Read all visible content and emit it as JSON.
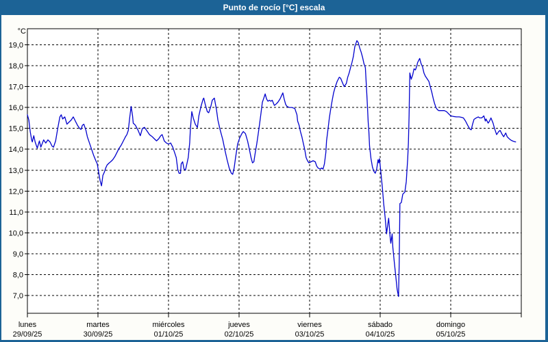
{
  "window": {
    "title": "Punto de rocío [°C] escala"
  },
  "colors": {
    "titlebar": "#1c6396",
    "frame": "#1c6396",
    "series_line": "#0000cd",
    "grid": "#000000",
    "text": "#000000",
    "plot_background": "#ffffff"
  },
  "chart_data": {
    "type": "line",
    "title": "Punto de rocío [°C] escala",
    "ylabel": "°C",
    "unit_label": "°C",
    "decimal_separator": ",",
    "grid": "dashed",
    "legend_position": "none",
    "ylim": [
      7,
      19
    ],
    "yticks": [
      7,
      8,
      9,
      10,
      11,
      12,
      13,
      14,
      15,
      16,
      17,
      18,
      19
    ],
    "ytick_labels": [
      "7,0",
      "8,0",
      "9,0",
      "10,0",
      "11,0",
      "12,0",
      "13,0",
      "14,0",
      "15,0",
      "16,0",
      "17,0",
      "18,0",
      "19,0"
    ],
    "x_axis": {
      "range_days": [
        0,
        7
      ],
      "days": [
        {
          "name": "lunes",
          "date": "29/09/25"
        },
        {
          "name": "martes",
          "date": "30/09/25"
        },
        {
          "name": "miércoles",
          "date": "01/10/25"
        },
        {
          "name": "jueves",
          "date": "02/10/25"
        },
        {
          "name": "viernes",
          "date": "03/10/25"
        },
        {
          "name": "sábado",
          "date": "04/10/25"
        },
        {
          "name": "domingo",
          "date": "05/10/25"
        }
      ]
    },
    "series": [
      {
        "name": "Punto de rocío",
        "color": "#0000cd",
        "points": [
          [
            0,
            15.65
          ],
          [
            0.02,
            15.4
          ],
          [
            0.04,
            14.85
          ],
          [
            0.06,
            14.45
          ],
          [
            0.07,
            14.35
          ],
          [
            0.09,
            14.65
          ],
          [
            0.11,
            14.35
          ],
          [
            0.14,
            14.05
          ],
          [
            0.17,
            14.4
          ],
          [
            0.19,
            14.1
          ],
          [
            0.23,
            14.45
          ],
          [
            0.26,
            14.3
          ],
          [
            0.29,
            14.45
          ],
          [
            0.32,
            14.35
          ],
          [
            0.35,
            14.15
          ],
          [
            0.37,
            14.1
          ],
          [
            0.4,
            14.4
          ],
          [
            0.43,
            15.0
          ],
          [
            0.46,
            15.55
          ],
          [
            0.48,
            15.65
          ],
          [
            0.5,
            15.45
          ],
          [
            0.53,
            15.55
          ],
          [
            0.56,
            15.2
          ],
          [
            0.59,
            15.3
          ],
          [
            0.62,
            15.4
          ],
          [
            0.65,
            15.55
          ],
          [
            0.68,
            15.35
          ],
          [
            0.71,
            15.15
          ],
          [
            0.74,
            15.0
          ],
          [
            0.76,
            14.95
          ],
          [
            0.78,
            15.15
          ],
          [
            0.8,
            15.2
          ],
          [
            0.83,
            14.9
          ],
          [
            0.85,
            14.6
          ],
          [
            0.88,
            14.3
          ],
          [
            0.91,
            14.0
          ],
          [
            0.94,
            13.7
          ],
          [
            0.97,
            13.45
          ],
          [
            0.99,
            13.3
          ],
          [
            1.01,
            12.9
          ],
          [
            1.03,
            12.5
          ],
          [
            1.05,
            12.25
          ],
          [
            1.07,
            12.75
          ],
          [
            1.09,
            12.9
          ],
          [
            1.11,
            13.1
          ],
          [
            1.13,
            13.25
          ],
          [
            1.16,
            13.35
          ],
          [
            1.18,
            13.4
          ],
          [
            1.21,
            13.5
          ],
          [
            1.24,
            13.65
          ],
          [
            1.27,
            13.85
          ],
          [
            1.3,
            14.05
          ],
          [
            1.33,
            14.2
          ],
          [
            1.36,
            14.4
          ],
          [
            1.39,
            14.6
          ],
          [
            1.41,
            14.7
          ],
          [
            1.43,
            14.9
          ],
          [
            1.45,
            15.5
          ],
          [
            1.47,
            16.05
          ],
          [
            1.49,
            15.6
          ],
          [
            1.5,
            15.25
          ],
          [
            1.53,
            15.15
          ],
          [
            1.57,
            14.9
          ],
          [
            1.6,
            14.65
          ],
          [
            1.63,
            15.0
          ],
          [
            1.66,
            15.05
          ],
          [
            1.69,
            14.9
          ],
          [
            1.73,
            14.7
          ],
          [
            1.77,
            14.6
          ],
          [
            1.8,
            14.5
          ],
          [
            1.83,
            14.4
          ],
          [
            1.86,
            14.5
          ],
          [
            1.89,
            14.65
          ],
          [
            1.91,
            14.7
          ],
          [
            1.94,
            14.4
          ],
          [
            1.97,
            14.3
          ],
          [
            2,
            14.25
          ],
          [
            2.03,
            14.3
          ],
          [
            2.06,
            14.1
          ],
          [
            2.09,
            13.8
          ],
          [
            2.11,
            13.6
          ],
          [
            2.13,
            13.05
          ],
          [
            2.15,
            12.85
          ],
          [
            2.17,
            12.85
          ],
          [
            2.18,
            13.3
          ],
          [
            2.2,
            13.4
          ],
          [
            2.22,
            13.05
          ],
          [
            2.24,
            13.0
          ],
          [
            2.26,
            13.3
          ],
          [
            2.28,
            13.6
          ],
          [
            2.3,
            14.3
          ],
          [
            2.31,
            14.95
          ],
          [
            2.33,
            15.8
          ],
          [
            2.35,
            15.5
          ],
          [
            2.38,
            15.2
          ],
          [
            2.41,
            15.05
          ],
          [
            2.43,
            15.6
          ],
          [
            2.46,
            16.05
          ],
          [
            2.49,
            16.4
          ],
          [
            2.5,
            16.45
          ],
          [
            2.52,
            16.15
          ],
          [
            2.55,
            15.8
          ],
          [
            2.57,
            15.75
          ],
          [
            2.6,
            16.05
          ],
          [
            2.62,
            16.35
          ],
          [
            2.65,
            16.45
          ],
          [
            2.68,
            15.9
          ],
          [
            2.7,
            15.4
          ],
          [
            2.73,
            14.95
          ],
          [
            2.77,
            14.45
          ],
          [
            2.8,
            13.95
          ],
          [
            2.83,
            13.5
          ],
          [
            2.86,
            13.1
          ],
          [
            2.89,
            12.85
          ],
          [
            2.91,
            12.8
          ],
          [
            2.93,
            13.1
          ],
          [
            2.95,
            13.6
          ],
          [
            2.98,
            14.25
          ],
          [
            3.01,
            14.55
          ],
          [
            3.04,
            14.75
          ],
          [
            3.06,
            14.85
          ],
          [
            3.09,
            14.75
          ],
          [
            3.12,
            14.4
          ],
          [
            3.14,
            14.1
          ],
          [
            3.17,
            13.6
          ],
          [
            3.19,
            13.35
          ],
          [
            3.21,
            13.4
          ],
          [
            3.23,
            13.85
          ],
          [
            3.25,
            14.25
          ],
          [
            3.27,
            14.7
          ],
          [
            3.29,
            15.2
          ],
          [
            3.31,
            15.7
          ],
          [
            3.33,
            16.25
          ],
          [
            3.35,
            16.45
          ],
          [
            3.37,
            16.65
          ],
          [
            3.39,
            16.4
          ],
          [
            3.41,
            16.3
          ],
          [
            3.43,
            16.35
          ],
          [
            3.45,
            16.3
          ],
          [
            3.47,
            16.35
          ],
          [
            3.5,
            16.1
          ],
          [
            3.52,
            16.15
          ],
          [
            3.55,
            16.25
          ],
          [
            3.58,
            16.4
          ],
          [
            3.6,
            16.55
          ],
          [
            3.62,
            16.7
          ],
          [
            3.64,
            16.4
          ],
          [
            3.66,
            16.15
          ],
          [
            3.68,
            16.05
          ],
          [
            3.71,
            16.0
          ],
          [
            3.75,
            16.0
          ],
          [
            3.79,
            15.95
          ],
          [
            3.82,
            15.65
          ],
          [
            3.83,
            15.35
          ],
          [
            3.85,
            15.15
          ],
          [
            3.87,
            14.85
          ],
          [
            3.89,
            14.6
          ],
          [
            3.91,
            14.3
          ],
          [
            3.93,
            14.0
          ],
          [
            3.95,
            13.6
          ],
          [
            3.97,
            13.45
          ],
          [
            3.99,
            13.35
          ],
          [
            4.02,
            13.4
          ],
          [
            4.05,
            13.45
          ],
          [
            4.08,
            13.4
          ],
          [
            4.1,
            13.2
          ],
          [
            4.12,
            13.1
          ],
          [
            4.15,
            13.05
          ],
          [
            4.17,
            13.1
          ],
          [
            4.19,
            13.05
          ],
          [
            4.21,
            13.3
          ],
          [
            4.23,
            13.85
          ],
          [
            4.24,
            14.4
          ],
          [
            4.26,
            14.95
          ],
          [
            4.28,
            15.5
          ],
          [
            4.3,
            15.95
          ],
          [
            4.32,
            16.35
          ],
          [
            4.34,
            16.7
          ],
          [
            4.36,
            16.95
          ],
          [
            4.39,
            17.25
          ],
          [
            4.42,
            17.45
          ],
          [
            4.44,
            17.4
          ],
          [
            4.47,
            17.15
          ],
          [
            4.49,
            17.0
          ],
          [
            4.52,
            17.15
          ],
          [
            4.54,
            17.45
          ],
          [
            4.56,
            17.65
          ],
          [
            4.58,
            17.9
          ],
          [
            4.6,
            18.15
          ],
          [
            4.62,
            18.45
          ],
          [
            4.64,
            18.9
          ],
          [
            4.67,
            19.2
          ],
          [
            4.69,
            19.1
          ],
          [
            4.71,
            18.85
          ],
          [
            4.73,
            18.65
          ],
          [
            4.75,
            18.4
          ],
          [
            4.77,
            18.1
          ],
          [
            4.79,
            17.9
          ],
          [
            4.81,
            16.7
          ],
          [
            4.82,
            16.0
          ],
          [
            4.83,
            15.3
          ],
          [
            4.84,
            14.85
          ],
          [
            4.85,
            14.15
          ],
          [
            4.87,
            13.55
          ],
          [
            4.89,
            13.15
          ],
          [
            4.91,
            12.95
          ],
          [
            4.93,
            12.85
          ],
          [
            4.95,
            13.05
          ],
          [
            4.97,
            13.5
          ],
          [
            4.98,
            13.35
          ],
          [
            4.99,
            13.55
          ],
          [
            5.01,
            12.9
          ],
          [
            5.03,
            12.2
          ],
          [
            5.05,
            11.4
          ],
          [
            5.07,
            10.75
          ],
          [
            5.09,
            9.95
          ],
          [
            5.11,
            10.45
          ],
          [
            5.12,
            10.7
          ],
          [
            5.14,
            9.85
          ],
          [
            5.15,
            9.5
          ],
          [
            5.17,
            9.95
          ],
          [
            5.18,
            9.3
          ],
          [
            5.2,
            8.6
          ],
          [
            5.22,
            7.95
          ],
          [
            5.24,
            7.3
          ],
          [
            5.26,
            6.95
          ],
          [
            5.27,
            8.6
          ],
          [
            5.28,
            11.4
          ],
          [
            5.3,
            11.45
          ],
          [
            5.32,
            11.85
          ],
          [
            5.35,
            11.95
          ],
          [
            5.37,
            12.45
          ],
          [
            5.38,
            13.0
          ],
          [
            5.39,
            13.55
          ],
          [
            5.4,
            14.3
          ],
          [
            5.41,
            15.6
          ],
          [
            5.42,
            17.65
          ],
          [
            5.44,
            17.35
          ],
          [
            5.46,
            17.55
          ],
          [
            5.48,
            17.85
          ],
          [
            5.5,
            17.8
          ],
          [
            5.52,
            18.0
          ],
          [
            5.53,
            18.15
          ],
          [
            5.56,
            18.35
          ],
          [
            5.58,
            18.1
          ],
          [
            5.6,
            17.95
          ],
          [
            5.62,
            17.65
          ],
          [
            5.64,
            17.5
          ],
          [
            5.66,
            17.4
          ],
          [
            5.69,
            17.25
          ],
          [
            5.71,
            17.0
          ],
          [
            5.73,
            16.75
          ],
          [
            5.75,
            16.45
          ],
          [
            5.77,
            16.2
          ],
          [
            5.79,
            16.0
          ],
          [
            5.81,
            15.9
          ],
          [
            5.83,
            15.85
          ],
          [
            5.87,
            15.85
          ],
          [
            5.91,
            15.85
          ],
          [
            5.94,
            15.8
          ],
          [
            5.97,
            15.7
          ],
          [
            6,
            15.6
          ],
          [
            6.04,
            15.57
          ],
          [
            6.08,
            15.55
          ],
          [
            6.12,
            15.55
          ],
          [
            6.15,
            15.53
          ],
          [
            6.18,
            15.5
          ],
          [
            6.21,
            15.35
          ],
          [
            6.24,
            15.15
          ],
          [
            6.27,
            14.97
          ],
          [
            6.29,
            14.93
          ],
          [
            6.31,
            15.2
          ],
          [
            6.33,
            15.43
          ],
          [
            6.36,
            15.5
          ],
          [
            6.39,
            15.55
          ],
          [
            6.41,
            15.5
          ],
          [
            6.44,
            15.5
          ],
          [
            6.47,
            15.6
          ],
          [
            6.49,
            15.35
          ],
          [
            6.5,
            15.45
          ],
          [
            6.53,
            15.25
          ],
          [
            6.55,
            15.35
          ],
          [
            6.57,
            15.5
          ],
          [
            6.6,
            15.25
          ],
          [
            6.62,
            15.0
          ],
          [
            6.65,
            14.7
          ],
          [
            6.68,
            14.85
          ],
          [
            6.7,
            14.9
          ],
          [
            6.73,
            14.7
          ],
          [
            6.75,
            14.6
          ],
          [
            6.78,
            14.78
          ],
          [
            6.8,
            14.6
          ],
          [
            6.83,
            14.5
          ],
          [
            6.86,
            14.42
          ],
          [
            6.89,
            14.38
          ],
          [
            6.92,
            14.35
          ]
        ]
      }
    ]
  }
}
